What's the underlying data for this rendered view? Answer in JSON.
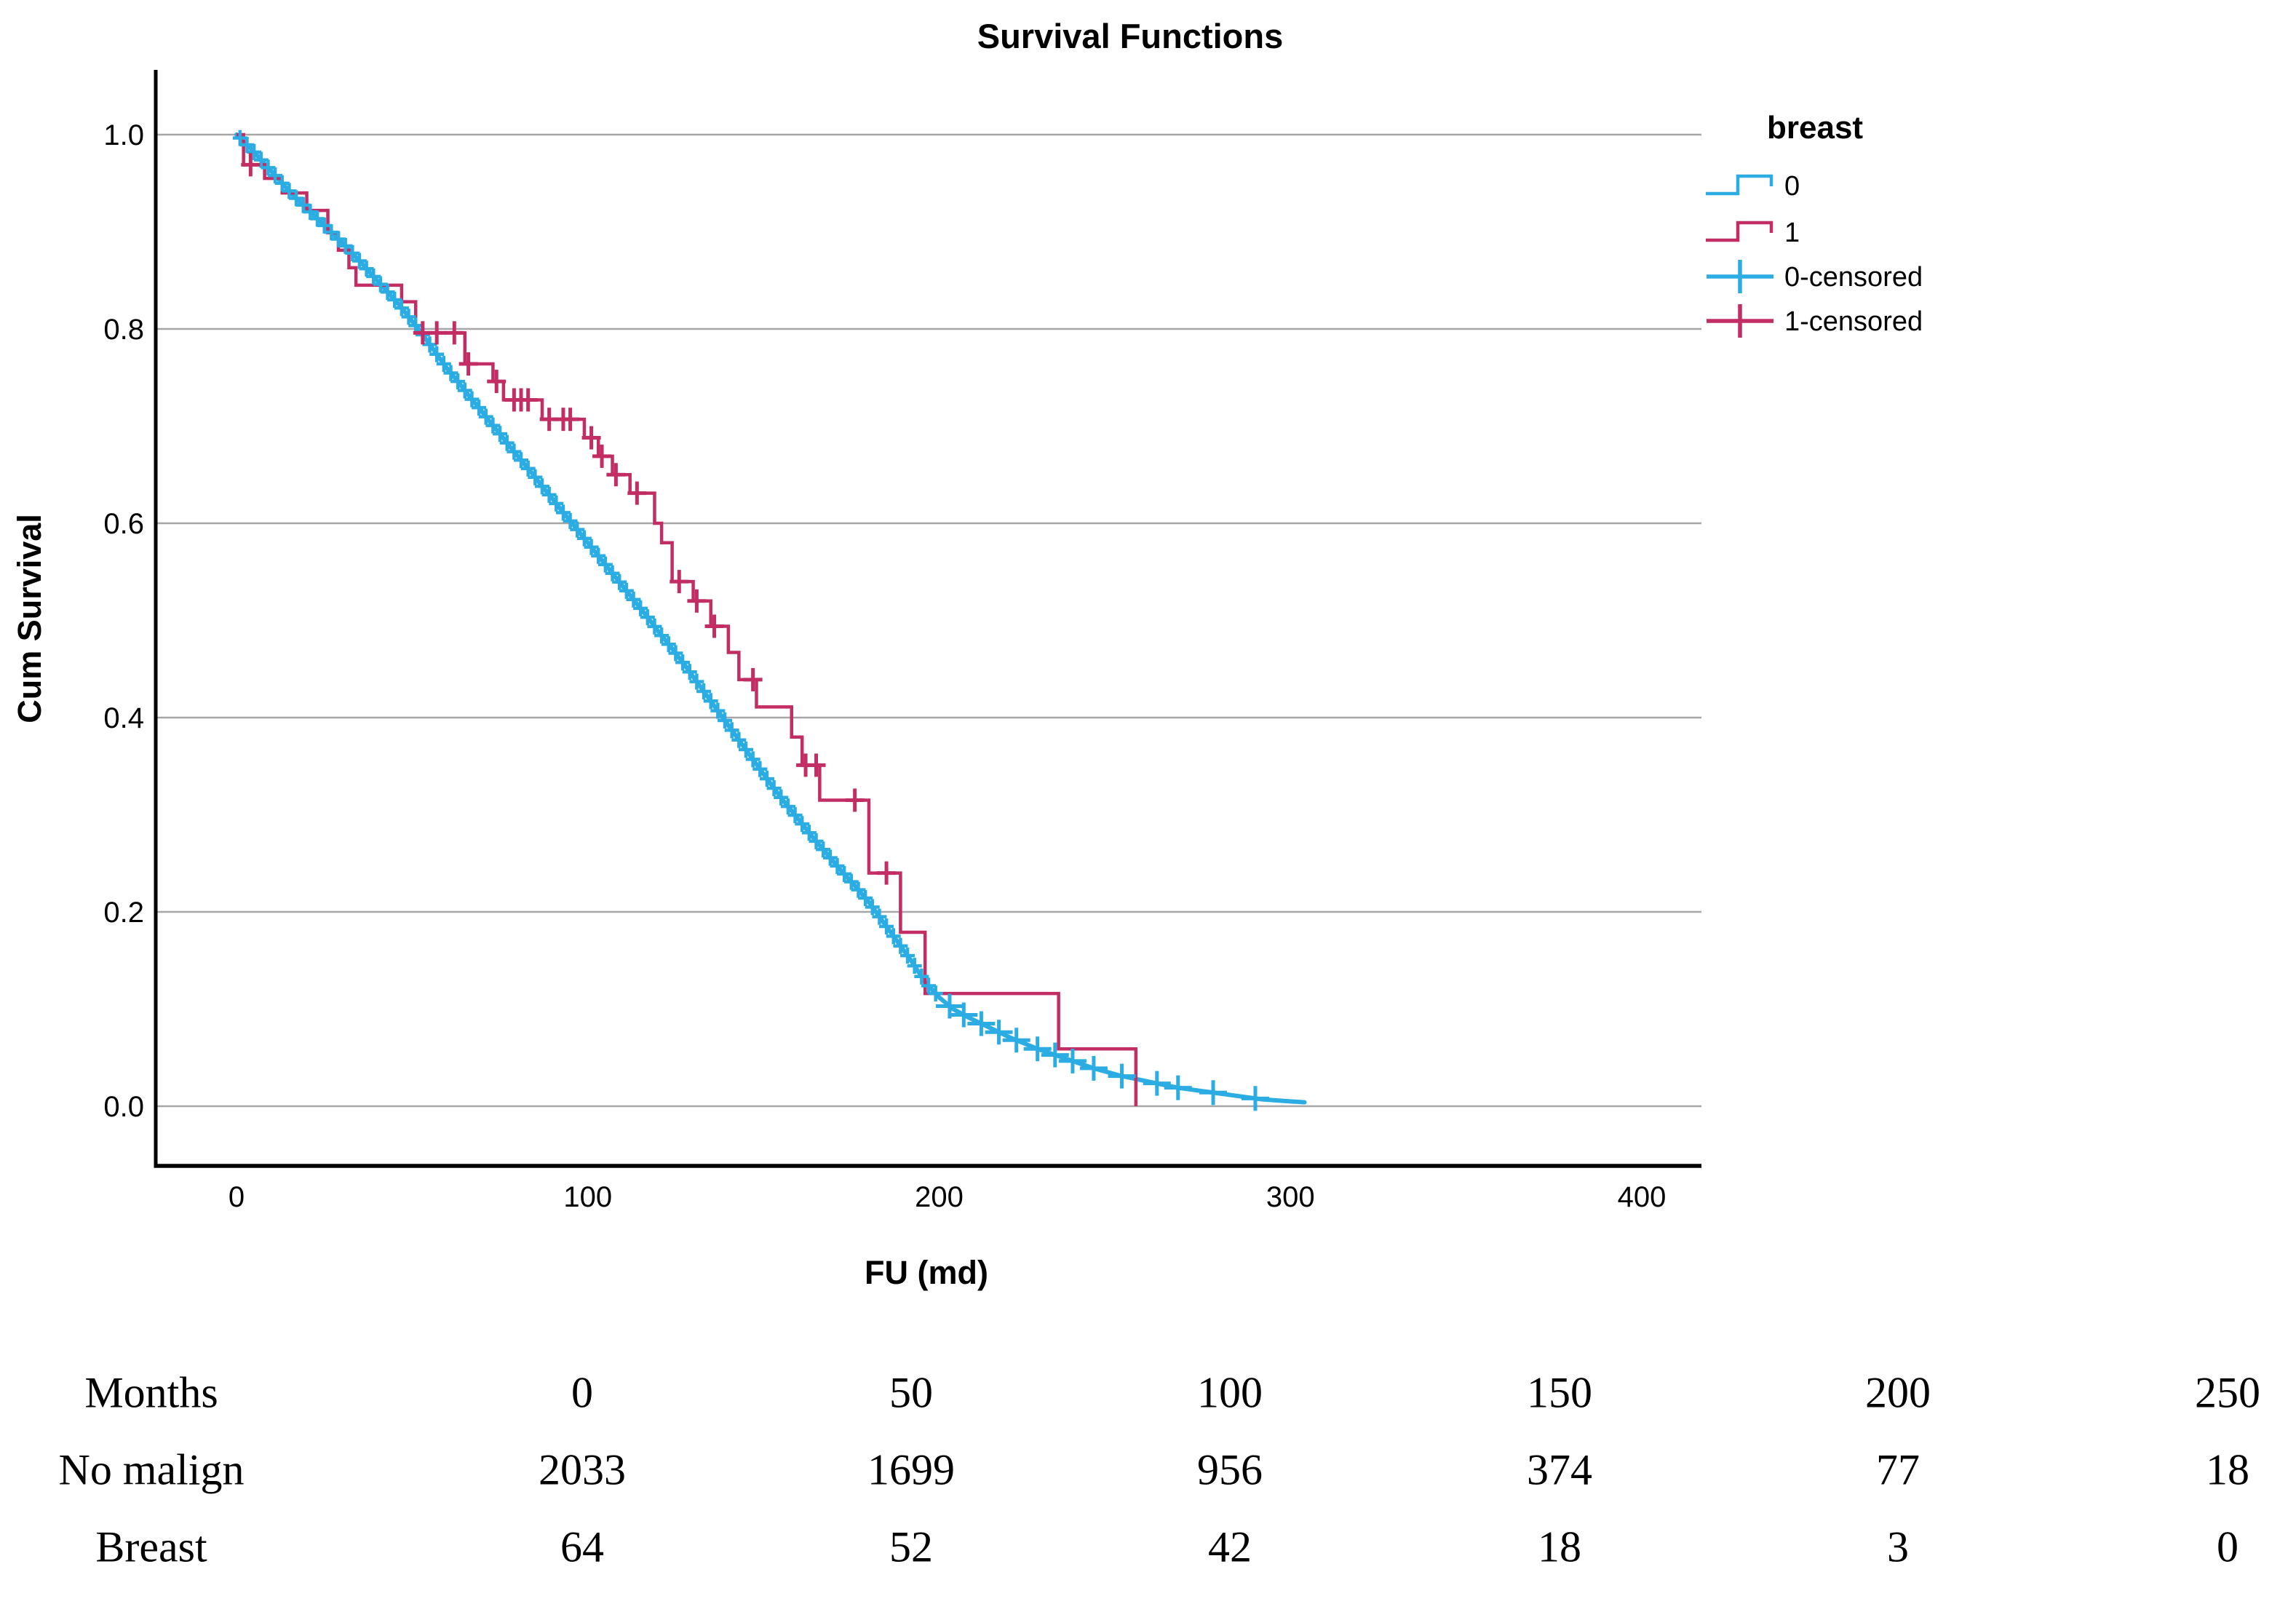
{
  "chart_data": {
    "type": "line",
    "title": "Survival Functions",
    "xlabel": "FU (md)",
    "ylabel": "Cum Survival",
    "xlim": [
      0,
      415
    ],
    "ylim": [
      -0.06,
      1.06
    ],
    "x_ticks": [
      0,
      100,
      200,
      300,
      400
    ],
    "y_ticks": [
      1.0,
      0.8,
      0.6,
      0.4,
      0.2,
      0.0
    ],
    "grid": "horizontal-only",
    "grid_color": "#a6a6a6",
    "axis_color": "#000000",
    "legend": {
      "title": "breast",
      "position": "right",
      "entries": [
        {
          "label": "0",
          "type": "line",
          "color": "#2bace3"
        },
        {
          "label": "1",
          "type": "line",
          "color": "#c22d63"
        },
        {
          "label": "0-censored",
          "type": "censor",
          "color": "#2bace3"
        },
        {
          "label": "1-censored",
          "type": "censor",
          "color": "#c22d63"
        }
      ]
    },
    "series": [
      {
        "name": "0",
        "group": "No malign",
        "color": "#2bace3",
        "step": false,
        "points": [
          [
            0,
            1.0
          ],
          [
            2,
            0.993
          ],
          [
            4,
            0.986
          ],
          [
            6,
            0.978
          ],
          [
            8,
            0.97
          ],
          [
            10,
            0.962
          ],
          [
            12,
            0.954
          ],
          [
            14,
            0.946
          ],
          [
            16,
            0.938
          ],
          [
            18,
            0.931
          ],
          [
            20,
            0.924
          ],
          [
            22,
            0.917
          ],
          [
            24,
            0.91
          ],
          [
            26,
            0.903
          ],
          [
            28,
            0.896
          ],
          [
            30,
            0.889
          ],
          [
            32,
            0.882
          ],
          [
            34,
            0.874
          ],
          [
            36,
            0.866
          ],
          [
            38,
            0.858
          ],
          [
            40,
            0.85
          ],
          [
            42,
            0.842
          ],
          [
            44,
            0.834
          ],
          [
            46,
            0.826
          ],
          [
            48,
            0.817
          ],
          [
            50,
            0.808
          ],
          [
            52,
            0.799
          ],
          [
            54,
            0.789
          ],
          [
            56,
            0.779
          ],
          [
            58,
            0.769
          ],
          [
            60,
            0.759
          ],
          [
            63,
            0.746
          ],
          [
            66,
            0.732
          ],
          [
            69,
            0.719
          ],
          [
            72,
            0.705
          ],
          [
            75,
            0.692
          ],
          [
            78,
            0.678
          ],
          [
            81,
            0.665
          ],
          [
            84,
            0.652
          ],
          [
            87,
            0.638
          ],
          [
            90,
            0.625
          ],
          [
            93,
            0.611
          ],
          [
            96,
            0.598
          ],
          [
            100,
            0.58
          ],
          [
            104,
            0.562
          ],
          [
            108,
            0.544
          ],
          [
            112,
            0.526
          ],
          [
            116,
            0.508
          ],
          [
            120,
            0.489
          ],
          [
            124,
            0.471
          ],
          [
            128,
            0.452
          ],
          [
            132,
            0.432
          ],
          [
            136,
            0.412
          ],
          [
            140,
            0.392
          ],
          [
            144,
            0.372
          ],
          [
            148,
            0.352
          ],
          [
            152,
            0.332
          ],
          [
            156,
            0.313
          ],
          [
            160,
            0.295
          ],
          [
            164,
            0.277
          ],
          [
            168,
            0.26
          ],
          [
            172,
            0.243
          ],
          [
            176,
            0.227
          ],
          [
            180,
            0.21
          ],
          [
            184,
            0.19
          ],
          [
            188,
            0.17
          ],
          [
            192,
            0.15
          ],
          [
            196,
            0.128
          ],
          [
            200,
            0.112
          ],
          [
            204,
            0.1
          ],
          [
            208,
            0.092
          ],
          [
            212,
            0.085
          ],
          [
            216,
            0.078
          ],
          [
            220,
            0.071
          ],
          [
            224,
            0.065
          ],
          [
            228,
            0.059
          ],
          [
            232,
            0.054
          ],
          [
            236,
            0.049
          ],
          [
            240,
            0.044
          ],
          [
            244,
            0.039
          ],
          [
            248,
            0.035
          ],
          [
            252,
            0.031
          ],
          [
            256,
            0.028
          ],
          [
            260,
            0.025
          ],
          [
            264,
            0.022
          ],
          [
            268,
            0.019
          ],
          [
            272,
            0.017
          ],
          [
            276,
            0.015
          ],
          [
            280,
            0.013
          ],
          [
            284,
            0.011
          ],
          [
            288,
            0.009
          ],
          [
            292,
            0.007
          ],
          [
            296,
            0.006
          ],
          [
            300,
            0.005
          ],
          [
            304,
            0.004
          ]
        ],
        "censor_months": [
          1,
          3,
          5,
          7,
          9,
          11,
          13,
          15,
          17,
          19,
          21,
          23,
          25,
          27,
          29,
          31,
          33,
          35,
          37,
          39,
          41,
          43,
          45,
          47,
          49,
          51,
          53,
          55,
          57,
          59,
          61,
          63,
          65,
          67,
          69,
          71,
          73,
          75,
          77,
          79,
          81,
          83,
          85,
          87,
          89,
          91,
          93,
          95,
          97,
          99,
          101,
          103,
          105,
          107,
          109,
          111,
          113,
          115,
          117,
          119,
          121,
          123,
          125,
          127,
          129,
          131,
          133,
          135,
          137,
          139,
          141,
          143,
          145,
          147,
          149,
          151,
          153,
          155,
          157,
          159,
          161,
          163,
          165,
          167,
          169,
          171,
          173,
          175,
          177,
          179,
          181,
          183,
          185,
          187,
          189,
          191,
          193,
          195,
          197,
          199,
          203,
          207,
          212,
          217,
          222,
          228,
          233,
          238,
          244,
          252,
          262,
          268,
          278,
          290
        ]
      },
      {
        "name": "1",
        "group": "Breast",
        "color": "#c22d63",
        "step": true,
        "points": [
          [
            0,
            1.0
          ],
          [
            2,
            0.969
          ],
          [
            8,
            0.955
          ],
          [
            13,
            0.94
          ],
          [
            20,
            0.922
          ],
          [
            26,
            0.899
          ],
          [
            29,
            0.881
          ],
          [
            32,
            0.863
          ],
          [
            34,
            0.845
          ],
          [
            47,
            0.828
          ],
          [
            51,
            0.796
          ],
          [
            65,
            0.764
          ],
          [
            73,
            0.746
          ],
          [
            76,
            0.727
          ],
          [
            87,
            0.707
          ],
          [
            99,
            0.688
          ],
          [
            103,
            0.669
          ],
          [
            107,
            0.65
          ],
          [
            112,
            0.631
          ],
          [
            119,
            0.6
          ],
          [
            121,
            0.58
          ],
          [
            124,
            0.54
          ],
          [
            130,
            0.52
          ],
          [
            135,
            0.494
          ],
          [
            140,
            0.467
          ],
          [
            143,
            0.439
          ],
          [
            148,
            0.411
          ],
          [
            158,
            0.38
          ],
          [
            161,
            0.351
          ],
          [
            166,
            0.315
          ],
          [
            180,
            0.24
          ],
          [
            189,
            0.179
          ],
          [
            196,
            0.116
          ],
          [
            234,
            0.059
          ],
          [
            256,
            0.0
          ]
        ],
        "censors": [
          [
            4,
            0.969
          ],
          [
            53,
            0.796
          ],
          [
            57,
            0.796
          ],
          [
            62,
            0.796
          ],
          [
            66,
            0.764
          ],
          [
            74,
            0.746
          ],
          [
            79,
            0.727
          ],
          [
            81,
            0.727
          ],
          [
            83,
            0.727
          ],
          [
            89,
            0.707
          ],
          [
            93,
            0.707
          ],
          [
            95,
            0.707
          ],
          [
            101,
            0.688
          ],
          [
            104,
            0.669
          ],
          [
            108,
            0.65
          ],
          [
            114,
            0.631
          ],
          [
            126,
            0.54
          ],
          [
            131,
            0.52
          ],
          [
            136,
            0.494
          ],
          [
            147,
            0.439
          ],
          [
            162,
            0.351
          ],
          [
            165,
            0.351
          ],
          [
            176,
            0.315
          ],
          [
            185,
            0.24
          ]
        ]
      }
    ]
  },
  "risk_table": {
    "rows": [
      {
        "label": "Months",
        "values": [
          "0",
          "50",
          "100",
          "150",
          "200",
          "250"
        ]
      },
      {
        "label": "No malign",
        "values": [
          "2033",
          "1699",
          "956",
          "374",
          "77",
          "18"
        ]
      },
      {
        "label": "Breast",
        "values": [
          "64",
          "52",
          "42",
          "18",
          "3",
          "0"
        ]
      }
    ]
  }
}
